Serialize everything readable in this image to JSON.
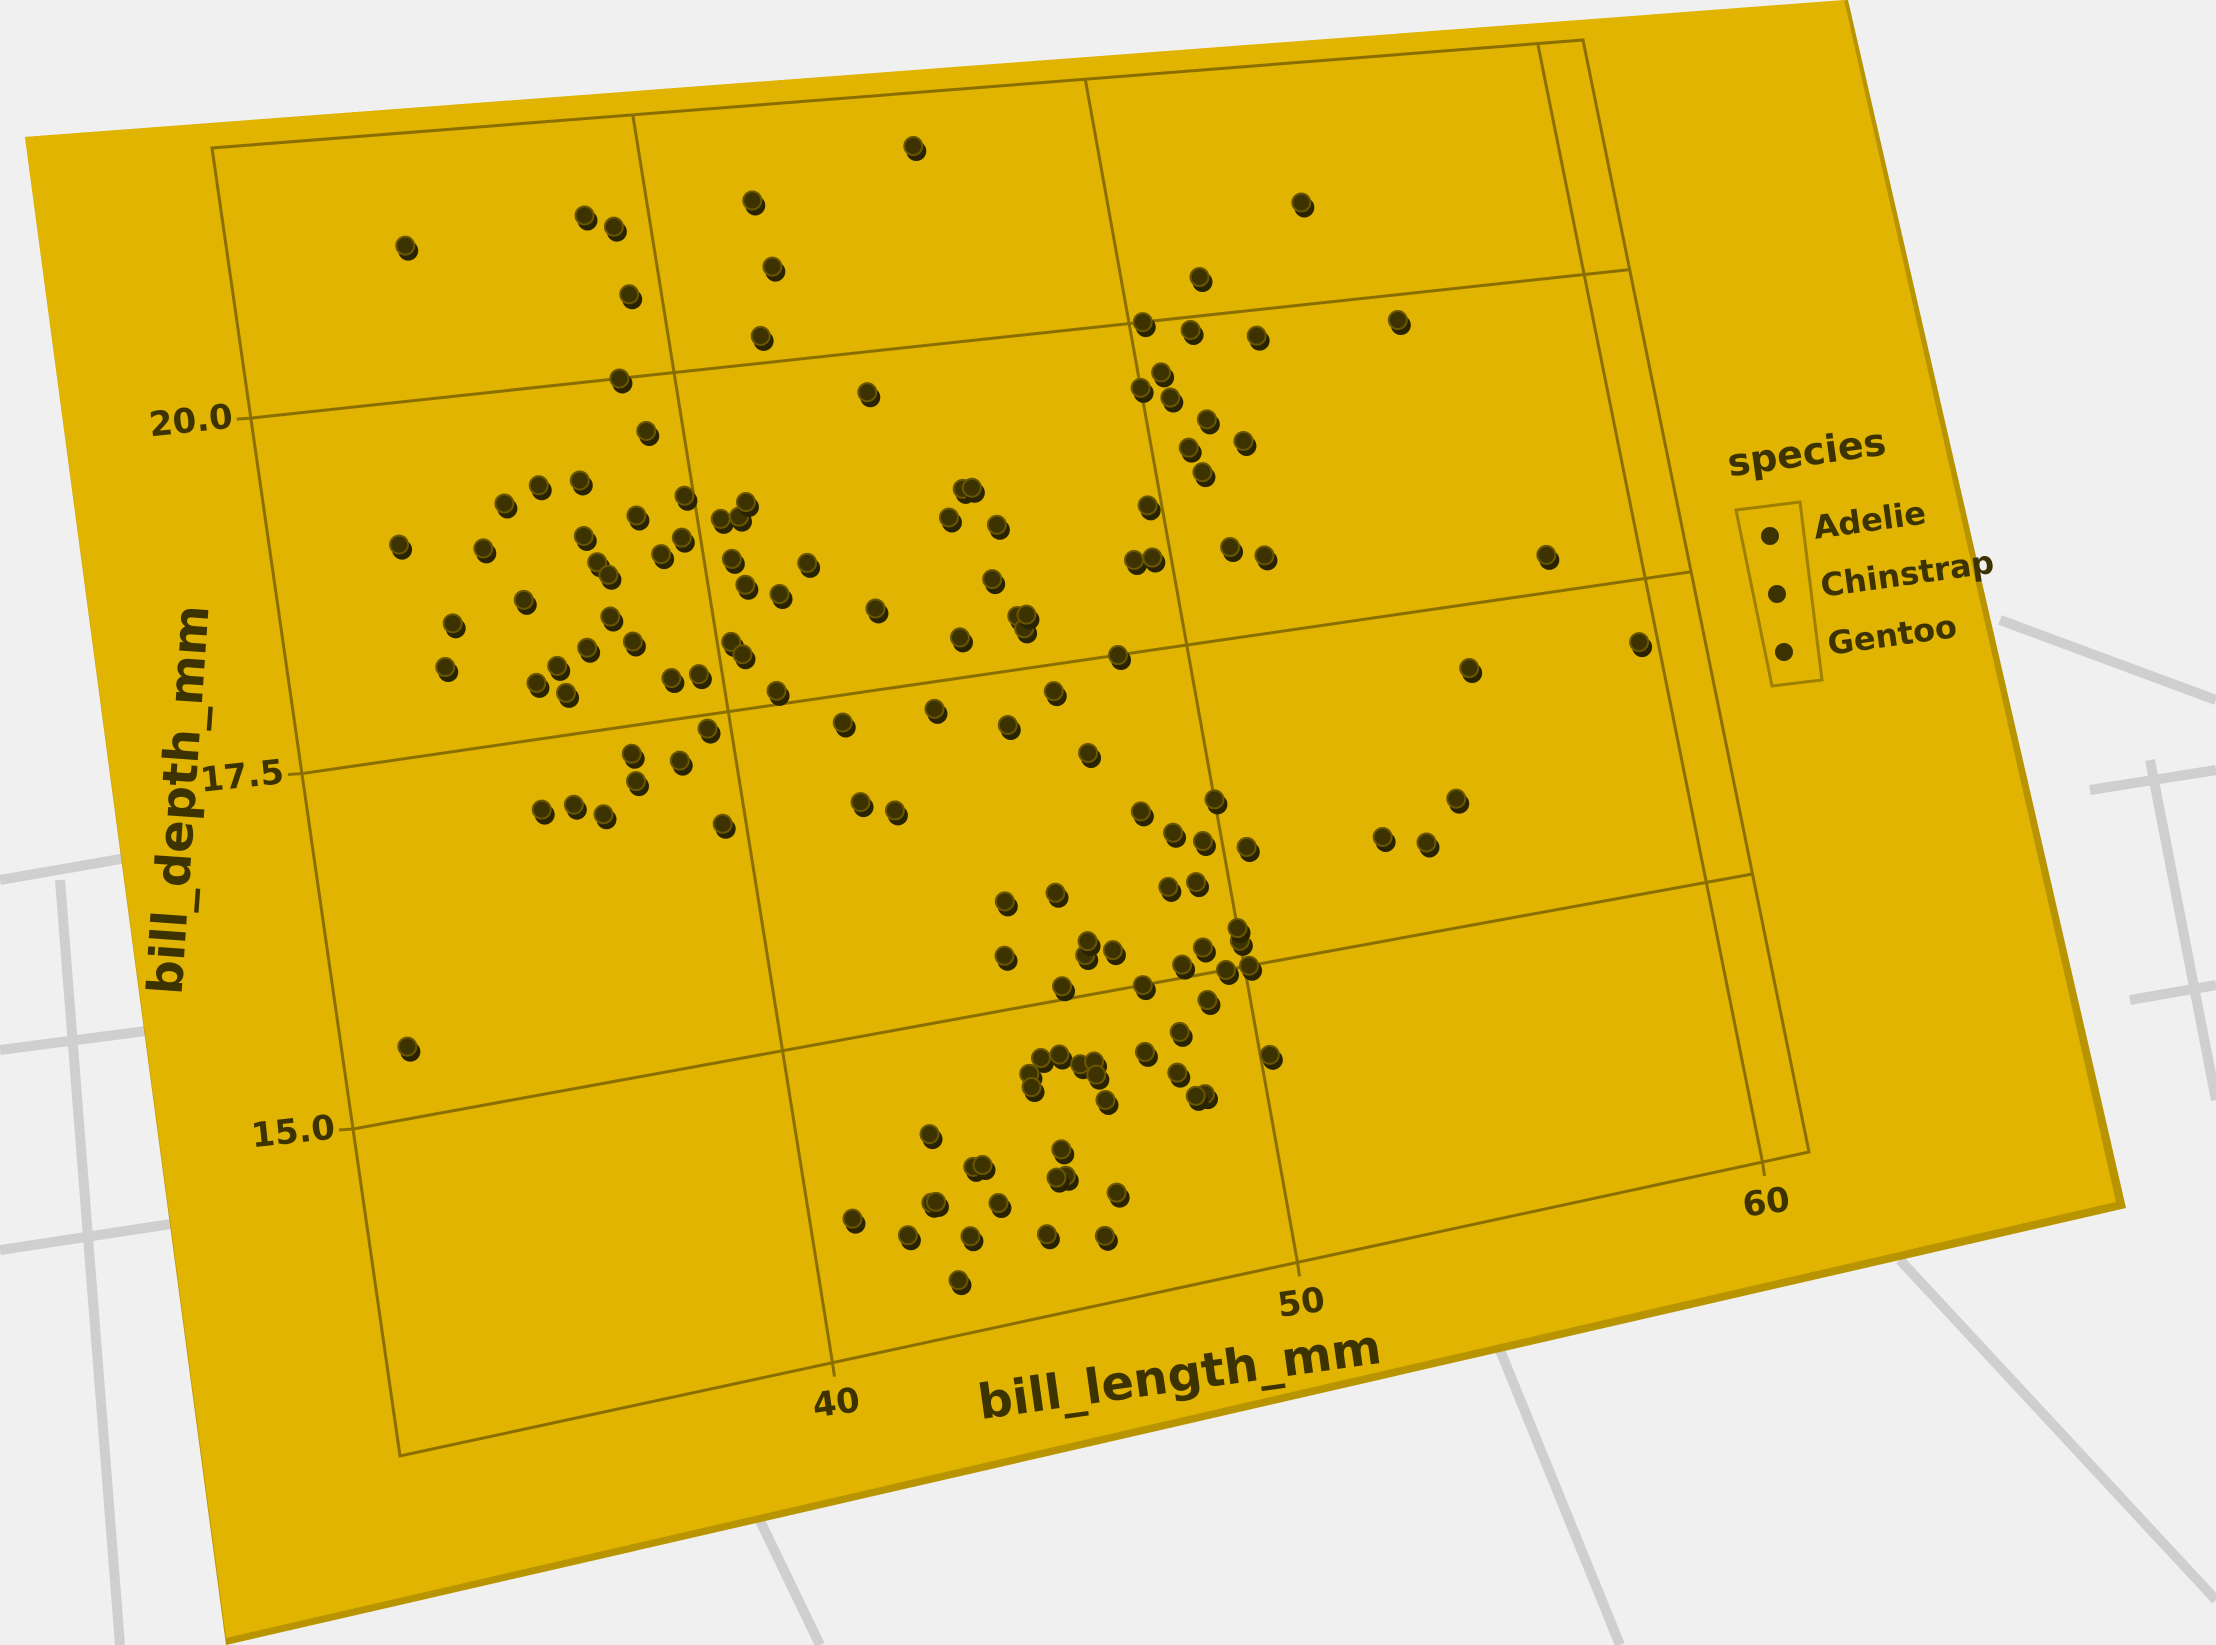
{
  "chart_data": {
    "type": "scatter",
    "x_label": "bill_length_mm",
    "y_label": "bill_depth_mm",
    "legend_title": "species",
    "legend_position": "right",
    "grid": true,
    "xlim": [
      30.7,
      61.0
    ],
    "ylim": [
      12.7,
      21.9
    ],
    "xticks": [
      40,
      50,
      60
    ],
    "yticks": [
      {
        "value": 15,
        "label": "15.0"
      },
      {
        "value": 17.5,
        "label": "17.5"
      },
      {
        "value": 20,
        "label": "20.0"
      }
    ],
    "series": [
      {
        "name": "Adelie",
        "color": "#3d3300",
        "x": [
          39.1,
          39.5,
          40.3,
          36.7,
          39.3,
          38.9,
          39.2,
          34.1,
          42.0,
          37.8,
          37.8,
          41.1,
          38.6,
          34.6,
          36.6,
          38.7,
          42.5,
          34.4,
          46.0,
          37.8,
          37.7,
          35.9,
          38.2,
          38.8,
          35.3,
          40.6,
          40.5,
          37.9,
          40.5,
          39.5,
          37.2,
          39.5,
          40.9,
          36.4,
          39.2,
          38.8,
          42.2,
          37.6,
          39.8,
          36.5,
          40.8,
          36.0,
          44.1,
          37.0,
          39.6,
          41.1,
          37.5,
          36.0,
          42.3,
          32.1,
          33.5,
          35.7,
          41.5,
          45.8
        ],
        "values": [
          18.7,
          17.4,
          18.0,
          19.3,
          20.6,
          17.8,
          19.6,
          18.1,
          20.2,
          17.1,
          17.3,
          17.6,
          21.2,
          21.1,
          17.8,
          19.0,
          20.7,
          18.4,
          21.5,
          18.3,
          18.7,
          19.2,
          18.1,
          17.2,
          18.9,
          18.6,
          17.9,
          18.6,
          18.9,
          16.7,
          18.1,
          17.8,
          18.9,
          17.0,
          21.1,
          20.0,
          18.5,
          19.3,
          19.1,
          18.0,
          18.4,
          18.5,
          19.7,
          16.9,
          18.8,
          19.0,
          18.9,
          17.9,
          21.2,
          15.5,
          19.0,
          17.0,
          18.3,
          18.9
        ]
      },
      {
        "name": "Chinstrap",
        "color": "#3d3300",
        "x": [
          46.5,
          50.0,
          51.3,
          45.4,
          52.7,
          45.2,
          46.1,
          51.3,
          46.0,
          51.3,
          46.6,
          51.7,
          47.0,
          52.0,
          45.9,
          50.5,
          50.3,
          58.0,
          46.4,
          49.2,
          42.4,
          48.5,
          43.2,
          50.6,
          46.7,
          52.0,
          54.2,
          42.5,
          51.0,
          49.7,
          47.5,
          55.8,
          43.5,
          49.6,
          50.8
        ],
        "values": [
          17.9,
          19.5,
          19.2,
          18.7,
          19.8,
          17.8,
          18.2,
          18.2,
          18.9,
          19.9,
          17.8,
          20.3,
          17.3,
          18.1,
          17.1,
          19.6,
          20.0,
          17.8,
          18.6,
          18.2,
          17.3,
          17.5,
          16.6,
          19.4,
          17.9,
          19.0,
          20.8,
          16.7,
          18.8,
          18.6,
          16.8,
          19.8,
          18.1,
          18.2,
          19.0
        ]
      },
      {
        "name": "Gentoo",
        "color": "#3d3300",
        "x": [
          46.1,
          50.0,
          48.7,
          50.0,
          47.6,
          46.5,
          45.4,
          46.7,
          43.3,
          46.8,
          40.9,
          49.0,
          45.5,
          48.4,
          45.8,
          49.3,
          42.0,
          49.2,
          46.2,
          48.7,
          50.2,
          45.1,
          46.5,
          46.3,
          42.9,
          46.1,
          47.8,
          48.2,
          50.0,
          47.3,
          42.8,
          45.1,
          59.6,
          49.1,
          48.4,
          42.6,
          44.4,
          44.0,
          48.7,
          42.7,
          49.6,
          45.3,
          49.6,
          50.5,
          43.6,
          45.5,
          50.5,
          44.9,
          45.2,
          46.6,
          48.5,
          45.1,
          50.1,
          46.5,
          45.0,
          43.8,
          54.3,
          55.9,
          55.1,
          53.4
        ],
        "values": [
          13.2,
          16.3,
          14.1,
          15.2,
          14.5,
          13.5,
          14.6,
          15.3,
          13.4,
          15.4,
          13.7,
          16.1,
          13.7,
          14.6,
          14.6,
          15.7,
          13.5,
          15.2,
          14.5,
          15.1,
          14.3,
          14.5,
          14.5,
          15.8,
          13.1,
          15.1,
          15.0,
          14.3,
          15.3,
          15.3,
          14.2,
          14.5,
          17.0,
          14.8,
          16.3,
          13.7,
          17.3,
          13.6,
          15.7,
          13.7,
          16.0,
          13.7,
          15.0,
          15.9,
          13.9,
          13.9,
          15.9,
          13.3,
          15.8,
          14.2,
          14.1,
          14.4,
          15.0,
          14.4,
          15.4,
          13.9,
          15.7,
          17.0,
          16.0,
          15.8
        ]
      }
    ]
  }
}
